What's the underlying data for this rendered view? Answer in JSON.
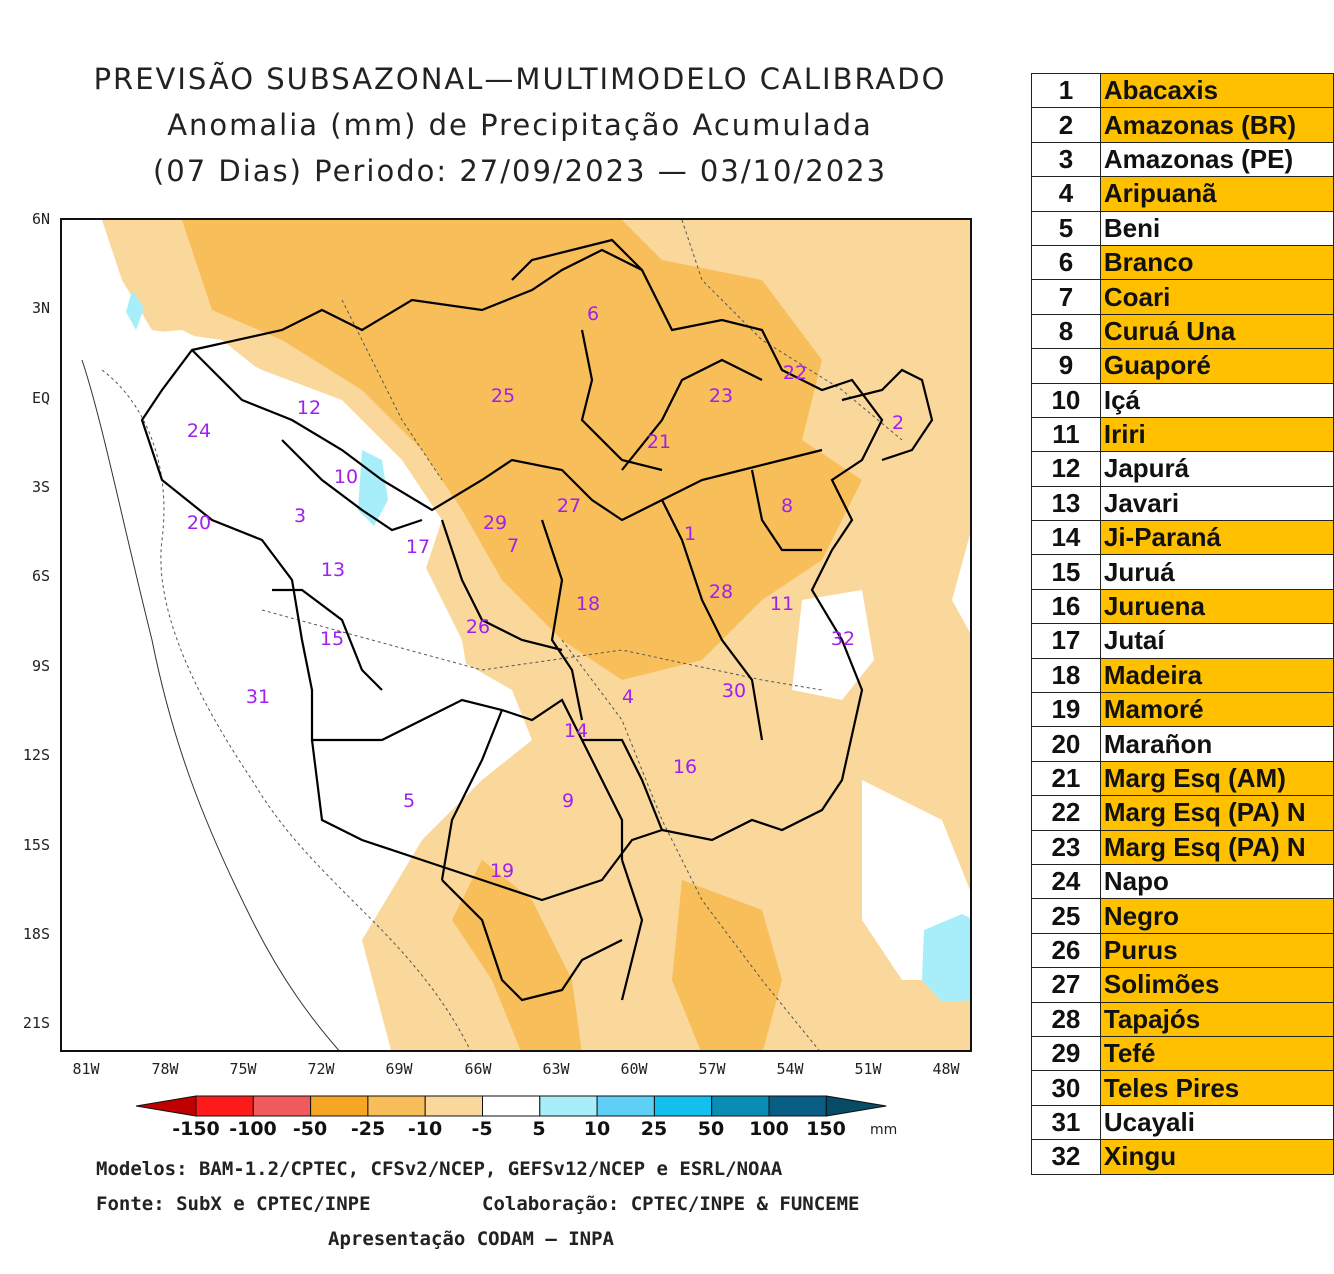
{
  "title": {
    "line1": "PREVISÃO SUBSAZONAL—MULTIMODELO CALIBRADO",
    "line2": "Anomalia (mm) de Precipitação Acumulada",
    "line3": "(07 Dias) Periodo: 27/09/2023 — 03/10/2023"
  },
  "axes": {
    "lat": [
      "6N",
      "3N",
      "EQ",
      "3S",
      "6S",
      "9S",
      "12S",
      "15S",
      "18S",
      "21S"
    ],
    "lon": [
      "81W",
      "78W",
      "75W",
      "72W",
      "69W",
      "66W",
      "63W",
      "60W",
      "57W",
      "54W",
      "51W",
      "48W"
    ]
  },
  "basin_labels": [
    "1",
    "2",
    "3",
    "4",
    "5",
    "6",
    "7",
    "8",
    "9",
    "10",
    "11",
    "12",
    "13",
    "14",
    "15",
    "16",
    "17",
    "18",
    "19",
    "20",
    "21",
    "22",
    "23",
    "24",
    "25",
    "26",
    "27",
    "28",
    "29",
    "30",
    "31",
    "32"
  ],
  "colorbar": {
    "labels": [
      "-150",
      "-100",
      "-50",
      "-25",
      "-10",
      "-5",
      "5",
      "10",
      "25",
      "50",
      "100",
      "150"
    ],
    "colors": [
      "#c00000",
      "#ff1a1a",
      "#f05a5a",
      "#f5a623",
      "#f7be5a",
      "#fad79a",
      "#ffffff",
      "#a8eefa",
      "#5fd0f5",
      "#12c0f0",
      "#0a8cb4",
      "#085e84",
      "#064c66"
    ],
    "unit": "mm"
  },
  "credits": {
    "line1": "Modelos: BAM-1.2/CPTEC, CFSv2/NCEP, GEFSv12/NCEP e ESRL/NOAA",
    "line2a": "Fonte: SubX e CPTEC/INPE",
    "line2b": "Colaboração: CPTEC/INPE & FUNCEME",
    "line3": "Apresentação CODAM — INPA"
  },
  "legend": [
    {
      "num": "1",
      "name": "Abacaxis",
      "highlight": true
    },
    {
      "num": "2",
      "name": "Amazonas (BR)",
      "highlight": true
    },
    {
      "num": "3",
      "name": "Amazonas (PE)",
      "highlight": false
    },
    {
      "num": "4",
      "name": "Aripuanã",
      "highlight": true
    },
    {
      "num": "5",
      "name": "Beni",
      "highlight": false
    },
    {
      "num": "6",
      "name": "Branco",
      "highlight": true
    },
    {
      "num": "7",
      "name": "Coari",
      "highlight": true
    },
    {
      "num": "8",
      "name": "Curuá Una",
      "highlight": true
    },
    {
      "num": "9",
      "name": "Guaporé",
      "highlight": true
    },
    {
      "num": "10",
      "name": "Içá",
      "highlight": false
    },
    {
      "num": "11",
      "name": "Iriri",
      "highlight": true
    },
    {
      "num": "12",
      "name": "Japurá",
      "highlight": false
    },
    {
      "num": "13",
      "name": "Javari",
      "highlight": false
    },
    {
      "num": "14",
      "name": "Ji-Paraná",
      "highlight": true
    },
    {
      "num": "15",
      "name": "Juruá",
      "highlight": false
    },
    {
      "num": "16",
      "name": "Juruena",
      "highlight": true
    },
    {
      "num": "17",
      "name": "Jutaí",
      "highlight": false
    },
    {
      "num": "18",
      "name": "Madeira",
      "highlight": true
    },
    {
      "num": "19",
      "name": "Mamoré",
      "highlight": true
    },
    {
      "num": "20",
      "name": "Marañon",
      "highlight": false
    },
    {
      "num": "21",
      "name": "Marg Esq (AM)",
      "highlight": true
    },
    {
      "num": "22",
      "name": "Marg Esq (PA) N",
      "highlight": true
    },
    {
      "num": "23",
      "name": "Marg Esq (PA) N",
      "highlight": true
    },
    {
      "num": "24",
      "name": "Napo",
      "highlight": false
    },
    {
      "num": "25",
      "name": "Negro",
      "highlight": true
    },
    {
      "num": "26",
      "name": "Purus",
      "highlight": true
    },
    {
      "num": "27",
      "name": "Solimões",
      "highlight": true
    },
    {
      "num": "28",
      "name": "Tapajós",
      "highlight": true
    },
    {
      "num": "29",
      "name": "Tefé",
      "highlight": true
    },
    {
      "num": "30",
      "name": "Teles Pires",
      "highlight": true
    },
    {
      "num": "31",
      "name": "Ucayali",
      "highlight": false
    },
    {
      "num": "32",
      "name": "Xingu",
      "highlight": true
    }
  ],
  "colors": {
    "highlight": "#ffc000",
    "basin_label": "#a020f0",
    "dry_light": "#fad79a",
    "dry_mid": "#f7be5a",
    "wet_light": "#a8eefa"
  }
}
